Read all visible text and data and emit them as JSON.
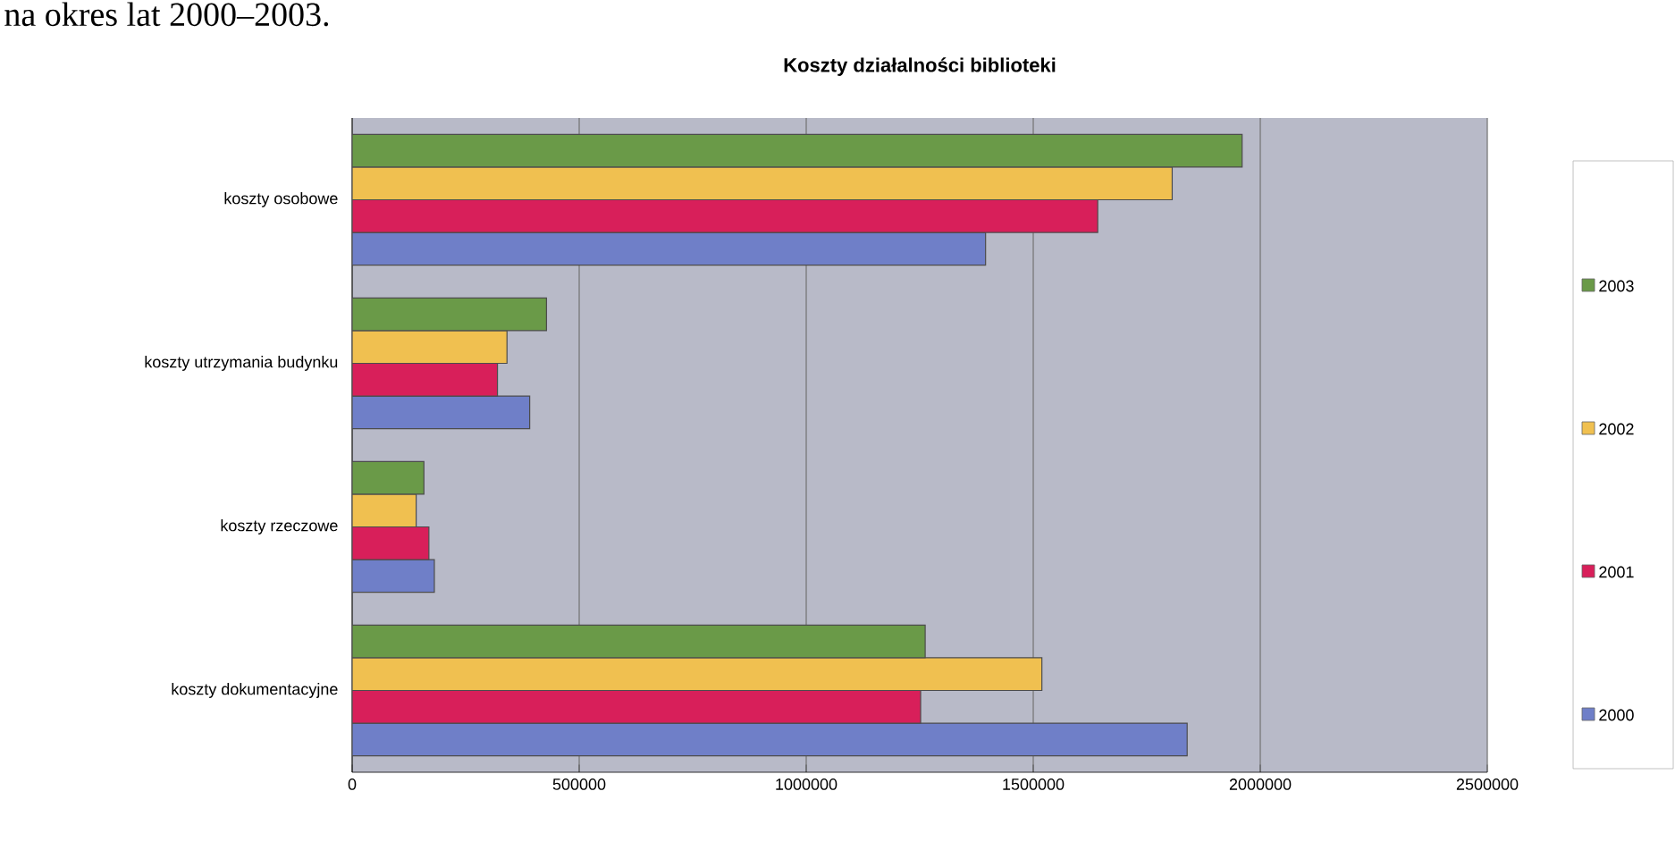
{
  "chart_data": {
    "type": "bar",
    "orientation": "horizontal",
    "title": "Koszty działalności biblioteki",
    "annotations": [
      "na okres lat 2000–2003."
    ],
    "categories": [
      "koszty osobowe",
      "koszty utrzymania budynku",
      "koszty rzeczowe",
      "koszty dokumentacyjne"
    ],
    "series": [
      {
        "name": "2000",
        "color": "#6f7fc8",
        "values": [
          1395000,
          391000,
          181000,
          1839000
        ]
      },
      {
        "name": "2001",
        "color": "#d81f5a",
        "values": [
          1642000,
          320000,
          169000,
          1252000
        ]
      },
      {
        "name": "2002",
        "color": "#f0c050",
        "values": [
          1806000,
          341000,
          141000,
          1519000
        ]
      },
      {
        "name": "2003",
        "color": "#6a9a48",
        "values": [
          1960000,
          428000,
          158000,
          1262000
        ]
      }
    ],
    "xlim": [
      0,
      2500000
    ],
    "xticks": [
      0,
      500000,
      1000000,
      1500000,
      2000000,
      2500000
    ],
    "grid": "x",
    "legend": "right"
  }
}
